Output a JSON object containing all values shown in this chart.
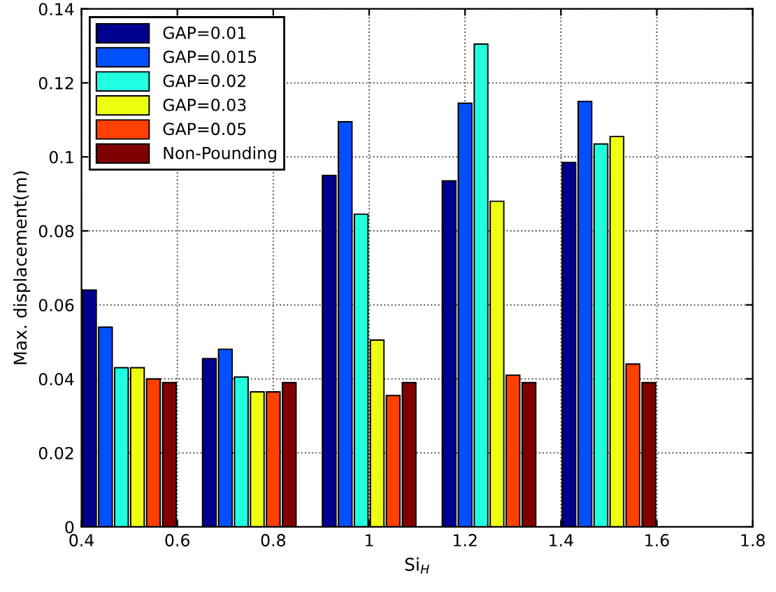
{
  "chart_data": {
    "type": "bar",
    "xlabel": "Si$_{H}$",
    "ylabel": "Max. displacement(m)",
    "x": [
      0.5,
      0.75,
      1,
      1.25,
      1.5
    ],
    "series": [
      {
        "name": "GAP=0.01",
        "color": "#00008f",
        "values": [
          0.064,
          0.0455,
          0.095,
          0.0935,
          0.0985
        ]
      },
      {
        "name": "GAP=0.015",
        "color": "#0050ff",
        "values": [
          0.054,
          0.048,
          0.1095,
          0.1145,
          0.115
        ]
      },
      {
        "name": "GAP=0.02",
        "color": "#20ffdf",
        "values": [
          0.043,
          0.0405,
          0.0845,
          0.1305,
          0.1035
        ]
      },
      {
        "name": "GAP=0.03",
        "color": "#efff10",
        "values": [
          0.043,
          0.0365,
          0.0505,
          0.088,
          0.1055
        ]
      },
      {
        "name": "GAP=0.05",
        "color": "#ff4000",
        "values": [
          0.04,
          0.0365,
          0.0355,
          0.041,
          0.044
        ]
      },
      {
        "name": "Non-Pounding",
        "color": "#800000",
        "values": [
          0.039,
          0.039,
          0.039,
          0.039,
          0.039
        ]
      }
    ],
    "xlim": [
      0.4,
      1.8
    ],
    "xticks": [
      0.4,
      0.6,
      0.8,
      1,
      1.2,
      1.4,
      1.6,
      1.8
    ],
    "ylim": [
      0,
      0.14
    ],
    "yticks": [
      0,
      0.02,
      0.04,
      0.06,
      0.08,
      0.1,
      0.12,
      0.14
    ],
    "grid": true,
    "legend": "top left"
  }
}
